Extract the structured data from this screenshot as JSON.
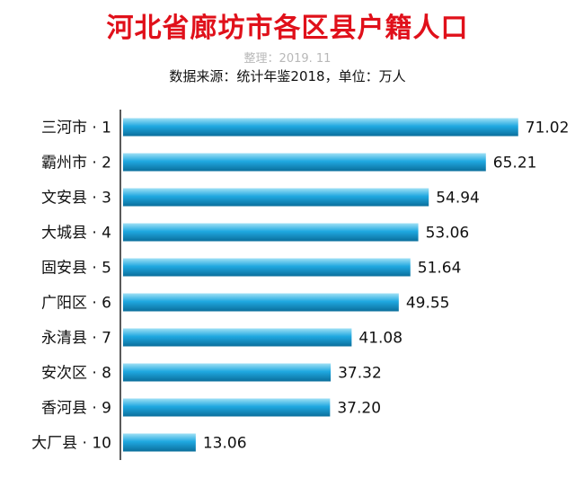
{
  "title": "河北省廊坊市各区县户籍人口",
  "credit": "整理：2019. 11",
  "source": "数据来源：统计年鉴2018，单位：万人",
  "colors": {
    "title": "#e0101a",
    "bar_light": "#9fe0f5",
    "bar_mid": "#1fa8e0",
    "bar_dark": "#0b6f9c",
    "axis": "#222222"
  },
  "chart_data": {
    "type": "bar",
    "orientation": "horizontal",
    "categories": [
      "三河市 · 1",
      "霸州市 · 2",
      "文安县 · 3",
      "大城县 · 4",
      "固安县 · 5",
      "广阳区 · 6",
      "永清县 · 7",
      "安次区 · 8",
      "香河县 · 9",
      "大厂县 · 10"
    ],
    "values": [
      71.02,
      65.21,
      54.94,
      53.06,
      51.64,
      49.55,
      41.08,
      37.32,
      37.2,
      13.06
    ],
    "value_labels": [
      "71.02",
      "65.21",
      "54.94",
      "53.06",
      "51.64",
      "49.55",
      "41.08",
      "37.32",
      "37.20",
      "13.06"
    ],
    "xlim": [
      0,
      78
    ],
    "grid": false,
    "legend": "none"
  }
}
